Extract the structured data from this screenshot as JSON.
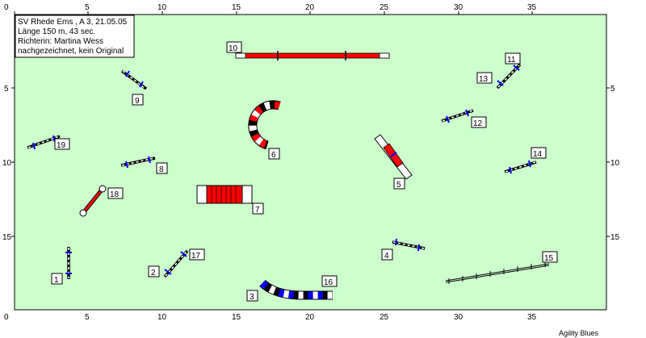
{
  "header": {
    "line1": "SV Rhede Ems , A 3, 21.05.05",
    "line2": "Länge 150 m, 43 sec.",
    "line3": "Richterin: Martina Wess",
    "line4": "nachgezeichnet, kein Original"
  },
  "axes": {
    "x_ticks": [
      "0",
      "5",
      "10",
      "15",
      "20",
      "25",
      "30",
      "35"
    ],
    "y_ticks": [
      "5",
      "10",
      "15"
    ]
  },
  "obstacles": [
    {
      "number": "1",
      "type": "jump"
    },
    {
      "number": "2",
      "type": "jump"
    },
    {
      "number": "3",
      "type": "tunnel"
    },
    {
      "number": "4",
      "type": "jump"
    },
    {
      "number": "5",
      "type": "a-frame"
    },
    {
      "number": "6",
      "type": "tunnel"
    },
    {
      "number": "7",
      "type": "closed-tunnel"
    },
    {
      "number": "8",
      "type": "jump"
    },
    {
      "number": "9",
      "type": "jump"
    },
    {
      "number": "10",
      "type": "dog-walk"
    },
    {
      "number": "11",
      "type": "jump"
    },
    {
      "number": "12",
      "type": "jump"
    },
    {
      "number": "13",
      "type": "jump"
    },
    {
      "number": "14",
      "type": "jump"
    },
    {
      "number": "15",
      "type": "weave-poles"
    },
    {
      "number": "16",
      "type": "tunnel"
    },
    {
      "number": "17",
      "type": "jump"
    },
    {
      "number": "18",
      "type": "tire"
    },
    {
      "number": "19",
      "type": "jump"
    }
  ],
  "colors": {
    "field": "#ccffcc",
    "red": "#ff0000",
    "blue": "#0000ff",
    "white": "#ffffff"
  },
  "credit": "Agility Blues"
}
